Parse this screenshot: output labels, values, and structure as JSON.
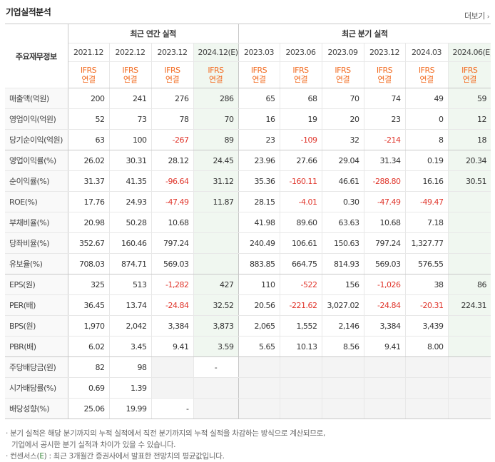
{
  "title": "기업실적분석",
  "more_label": "더보기",
  "header": {
    "label_col": "주요재무정보",
    "annual_group": "최근 연간 실적",
    "quarter_group": "최근 분기 실적",
    "annual_periods": [
      "2021.12",
      "2022.12",
      "2023.12",
      "2024.12(E)"
    ],
    "quarter_periods": [
      "2023.03",
      "2023.06",
      "2023.09",
      "2023.12",
      "2024.03",
      "2024.06(E)"
    ],
    "basis_line1": "IFRS",
    "basis_line2": "연결"
  },
  "rows": [
    {
      "label": "매출액(억원)",
      "annual": [
        "200",
        "241",
        "276",
        "286"
      ],
      "quarter": [
        "65",
        "68",
        "70",
        "74",
        "49",
        "59"
      ]
    },
    {
      "label": "영업이익(억원)",
      "annual": [
        "52",
        "73",
        "78",
        "70"
      ],
      "quarter": [
        "16",
        "19",
        "20",
        "23",
        "0",
        "12"
      ]
    },
    {
      "label": "당기순이익(억원)",
      "annual": [
        "63",
        "100",
        "-267",
        "89"
      ],
      "quarter": [
        "23",
        "-109",
        "32",
        "-214",
        "8",
        "18"
      ]
    },
    {
      "label": "영업이익률(%)",
      "annual": [
        "26.02",
        "30.31",
        "28.12",
        "24.45"
      ],
      "quarter": [
        "23.96",
        "27.66",
        "29.04",
        "31.34",
        "0.19",
        "20.34"
      ]
    },
    {
      "label": "순이익률(%)",
      "annual": [
        "31.37",
        "41.35",
        "-96.64",
        "31.12"
      ],
      "quarter": [
        "35.36",
        "-160.11",
        "46.61",
        "-288.80",
        "16.16",
        "30.51"
      ]
    },
    {
      "label": "ROE(%)",
      "annual": [
        "17.76",
        "24.93",
        "-47.49",
        "11.87"
      ],
      "quarter": [
        "28.15",
        "-4.01",
        "0.30",
        "-47.49",
        "-49.47",
        ""
      ]
    },
    {
      "label": "부채비율(%)",
      "annual": [
        "20.98",
        "50.28",
        "10.68",
        ""
      ],
      "quarter": [
        "41.98",
        "89.60",
        "63.63",
        "10.68",
        "7.18",
        ""
      ]
    },
    {
      "label": "당좌비율(%)",
      "annual": [
        "352.67",
        "160.46",
        "797.24",
        ""
      ],
      "quarter": [
        "240.49",
        "106.61",
        "150.63",
        "797.24",
        "1,327.77",
        ""
      ]
    },
    {
      "label": "유보율(%)",
      "annual": [
        "708.03",
        "874.71",
        "569.03",
        ""
      ],
      "quarter": [
        "883.85",
        "664.75",
        "814.93",
        "569.03",
        "576.55",
        ""
      ]
    },
    {
      "label": "EPS(원)",
      "annual": [
        "325",
        "513",
        "-1,282",
        "427"
      ],
      "quarter": [
        "110",
        "-522",
        "156",
        "-1,026",
        "38",
        "86"
      ]
    },
    {
      "label": "PER(배)",
      "annual": [
        "36.45",
        "13.74",
        "-24.84",
        "32.52"
      ],
      "quarter": [
        "20.56",
        "-221.62",
        "3,027.02",
        "-24.84",
        "-20.31",
        "224.31"
      ]
    },
    {
      "label": "BPS(원)",
      "annual": [
        "1,970",
        "2,042",
        "3,384",
        "3,873"
      ],
      "quarter": [
        "2,065",
        "1,552",
        "2,146",
        "3,384",
        "3,439",
        ""
      ]
    },
    {
      "label": "PBR(배)",
      "annual": [
        "6.02",
        "3.45",
        "9.41",
        "3.59"
      ],
      "quarter": [
        "5.65",
        "10.13",
        "8.56",
        "9.41",
        "8.00",
        ""
      ]
    },
    {
      "label": "주당배당금(원)",
      "annual": [
        "82",
        "98",
        "",
        "-"
      ],
      "quarter": [
        "",
        "",
        "",
        "",
        "",
        ""
      ]
    },
    {
      "label": "시가배당률(%)",
      "annual": [
        "0.69",
        "1.39",
        "",
        ""
      ],
      "quarter": [
        "",
        "",
        "",
        "",
        "",
        ""
      ]
    },
    {
      "label": "배당성향(%)",
      "annual": [
        "25.06",
        "19.99",
        "-",
        ""
      ],
      "quarter": [
        "",
        "",
        "",
        "",
        "",
        ""
      ]
    }
  ],
  "notes": {
    "line1": "· 분기 실적은 해당 분기까지의 누적 실적에서 직전 분기까지의 누적 실적을 차감하는 방식으로 계산되므로,",
    "line2": "기업에서 공시한 분기 실적과 차이가 있을 수 있습니다.",
    "line3_prefix": "· 컨센서스(",
    "line3_e": "E",
    "line3_suffix": ") : 최근 3개월간 증권사에서 발표한 전망치의 평균값입니다."
  },
  "colors": {
    "negative": "#e0352b",
    "ifrs": "#f26c22",
    "estimate_bg": "#f0f7f0",
    "consensus_e": "#3b8a3e"
  }
}
